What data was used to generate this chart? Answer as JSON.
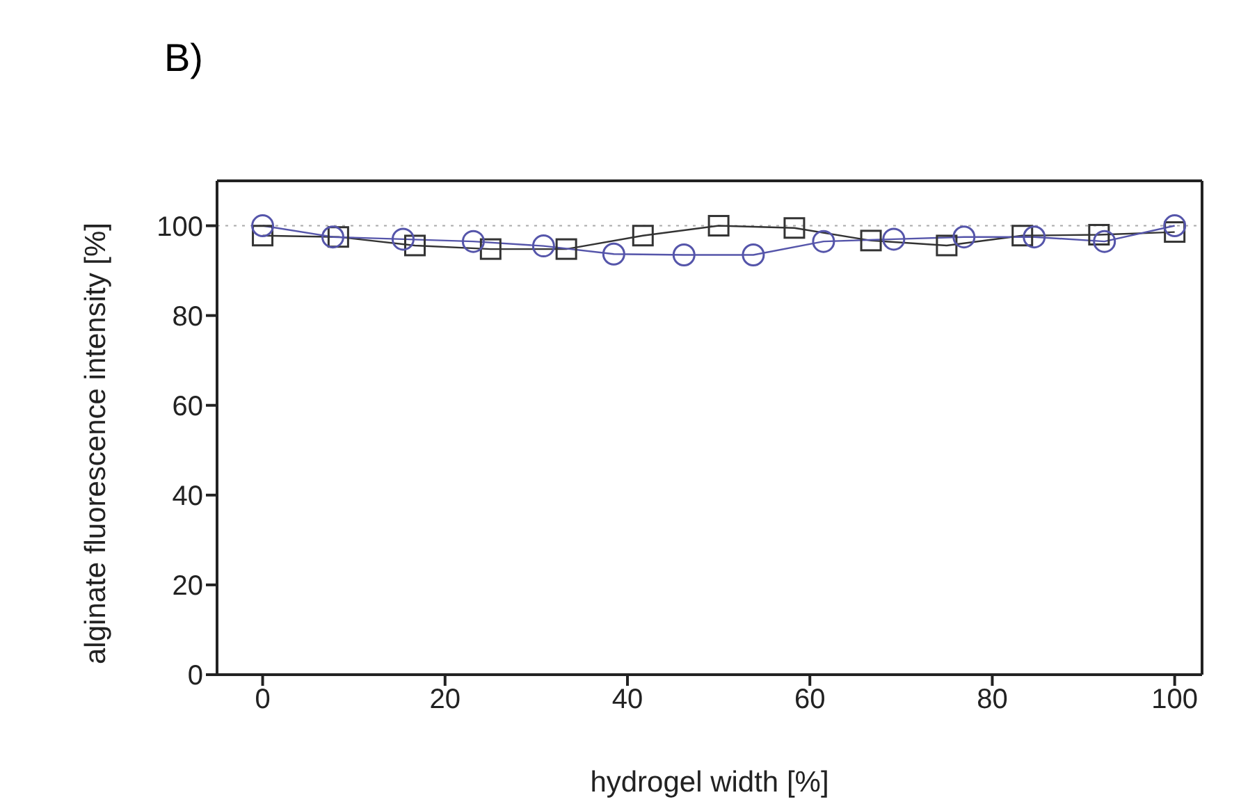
{
  "chart_data": {
    "type": "line",
    "title": "B)",
    "xlabel": "hydrogel width [%]",
    "ylabel": "alginate fluorescence intensity [%]",
    "xlim": [
      -5,
      103
    ],
    "xticks": [
      0,
      20,
      40,
      60,
      80,
      100
    ],
    "ylim": [
      0,
      110
    ],
    "yticks": [
      0,
      20,
      40,
      60,
      80,
      100
    ],
    "line_style": "solid",
    "ref_lines": [
      {
        "axis": "y",
        "value": 100,
        "color": "#aaaaaa",
        "line_style": "dotted"
      }
    ],
    "series": [
      {
        "marker": "square",
        "color": "#333333",
        "x": [
          0,
          8.3,
          16.7,
          25,
          33.3,
          41.7,
          50,
          58.3,
          66.7,
          75,
          83.3,
          91.7,
          100
        ],
        "values": [
          97.8,
          97.5,
          95.6,
          94.8,
          94.8,
          97.8,
          100,
          99.5,
          96.7,
          95.6,
          97.8,
          98,
          98.6
        ]
      },
      {
        "marker": "circle",
        "color": "#5555aa",
        "x": [
          0,
          7.7,
          15.4,
          23.1,
          30.8,
          38.5,
          46.2,
          53.8,
          61.5,
          69.2,
          76.9,
          84.6,
          92.3,
          100
        ],
        "values": [
          100,
          97.5,
          97,
          96.5,
          95.5,
          93.7,
          93.5,
          93.5,
          96.5,
          97,
          97.5,
          97.5,
          96.5,
          100
        ]
      }
    ]
  }
}
